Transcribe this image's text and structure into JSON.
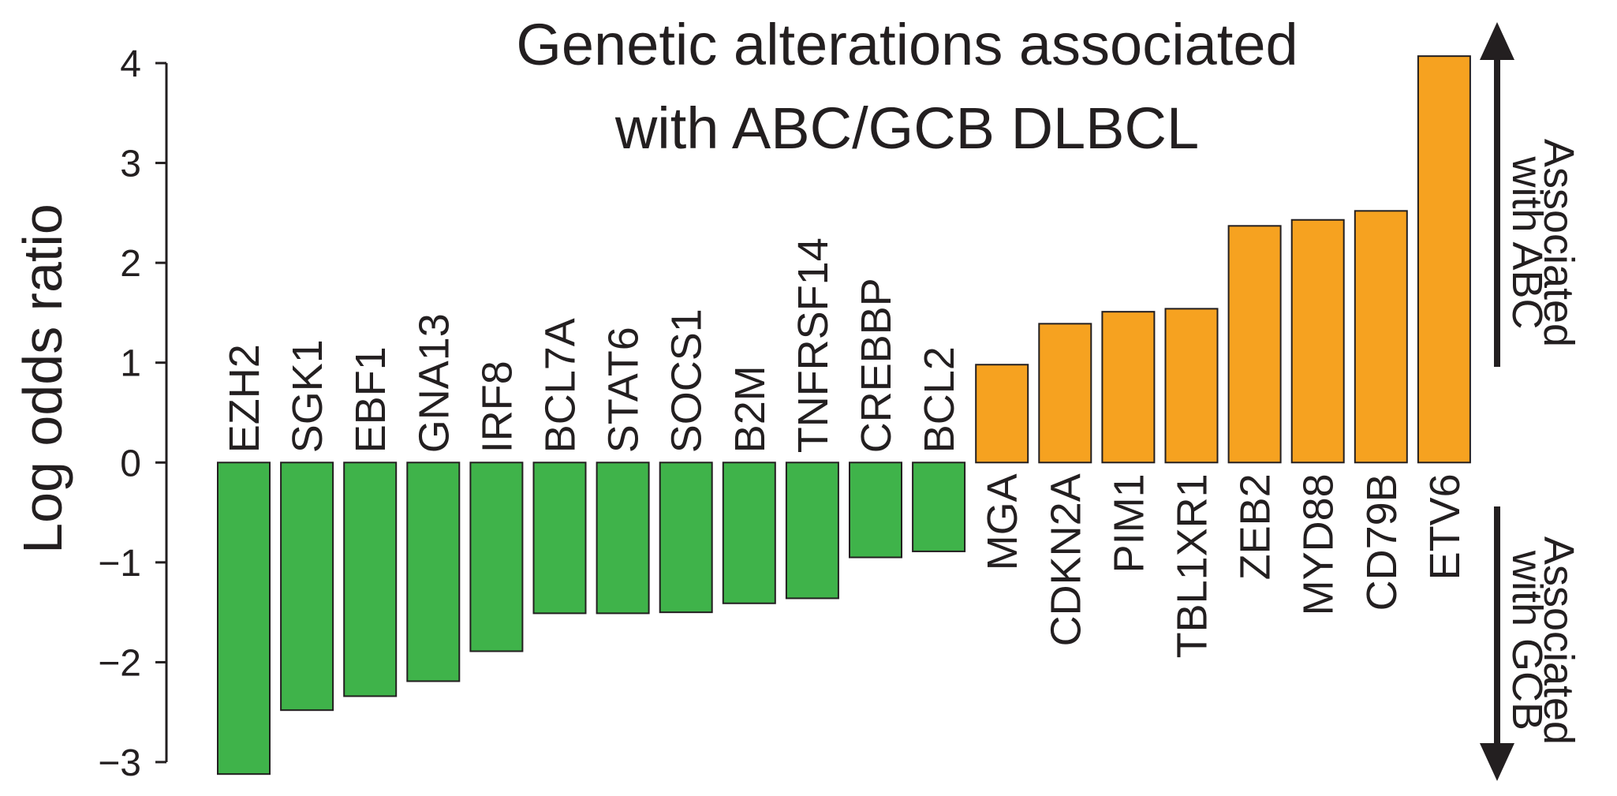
{
  "chart_data": {
    "type": "bar",
    "title_lines": [
      "Genetic alterations associated",
      "with ABC/GCB DLBCL"
    ],
    "xlabel": "",
    "ylabel": "Log odds ratio",
    "ylim": [
      -3,
      4
    ],
    "yticks": [
      4,
      3,
      2,
      1,
      0,
      -1,
      -2,
      -3
    ],
    "ytick_labels": [
      "4",
      "3",
      "2",
      "1",
      "0",
      "−1",
      "−2",
      "−3"
    ],
    "categories": [
      "EZH2",
      "SGK1",
      "EBF1",
      "GNA13",
      "IRF8",
      "BCL7A",
      "STAT6",
      "SOCS1",
      "B2M",
      "TNFRSF14",
      "CREBBP",
      "BCL2",
      "MGA",
      "CDKN2A",
      "PIM1",
      "TBL1XR1",
      "ZEB2",
      "MYD88",
      "CD79B",
      "ETV6"
    ],
    "values": [
      -3.12,
      -2.48,
      -2.34,
      -2.19,
      -1.89,
      -1.51,
      -1.51,
      -1.5,
      -1.41,
      -1.36,
      -0.95,
      -0.89,
      0.98,
      1.39,
      1.51,
      1.54,
      2.37,
      2.43,
      2.52,
      4.07
    ],
    "colors": {
      "positive": "#f6a220",
      "negative": "#3fb34a",
      "ink": "#231f20"
    },
    "annotations": {
      "abc": [
        "Associated",
        "with ABC"
      ],
      "gcb": [
        "Associated",
        "with GCB"
      ]
    }
  }
}
